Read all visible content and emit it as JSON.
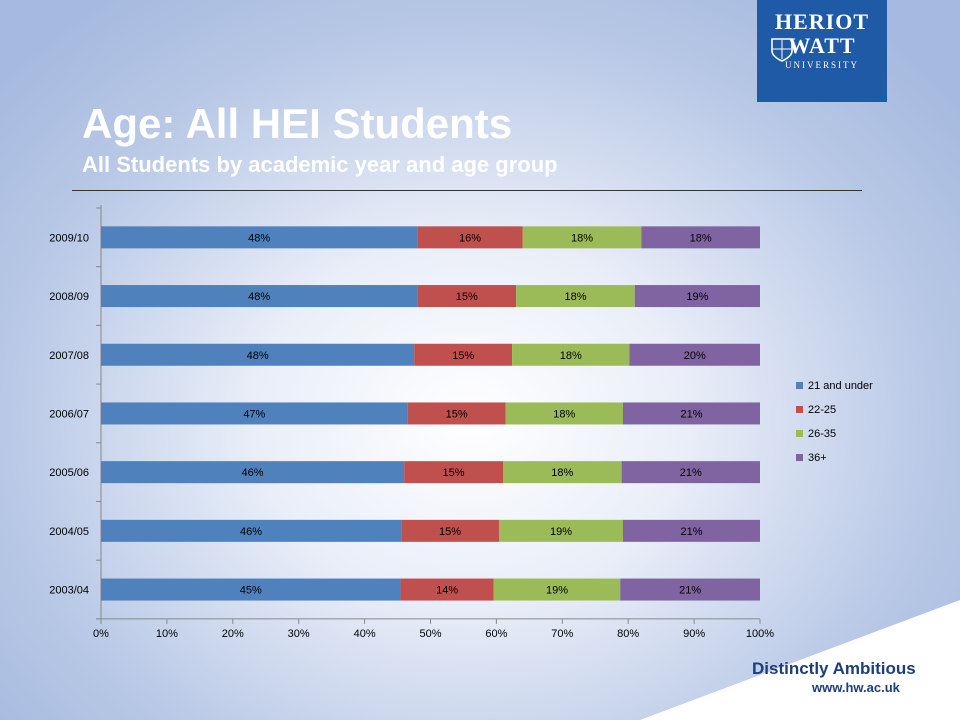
{
  "slide": {
    "title": "Age: All HEI Students",
    "subtitle": "All Students by academic year and age group",
    "logo_line1": "HERIOT",
    "logo_line2": "WATT",
    "logo_line3": "UNIVERSITY",
    "tagline": "Distinctly Ambitious",
    "url": "www.hw.ac.uk",
    "brand_color": "#1f5aa6"
  },
  "chart_data": {
    "type": "bar",
    "orientation": "horizontal",
    "stacked": "100%",
    "categories": [
      "2009/10",
      "2008/09",
      "2007/08",
      "2006/07",
      "2005/06",
      "2004/05",
      "2003/04"
    ],
    "series": [
      {
        "name": "21 and under",
        "color": "#4f81bd",
        "values": [
          48,
          48,
          48,
          47,
          46,
          46,
          45
        ]
      },
      {
        "name": "22-25",
        "color": "#c0504d",
        "values": [
          16,
          15,
          15,
          15,
          15,
          15,
          14
        ]
      },
      {
        "name": "26-35",
        "color": "#9bbb59",
        "values": [
          18,
          18,
          18,
          18,
          18,
          19,
          19
        ]
      },
      {
        "name": "36+",
        "color": "#8064a2",
        "values": [
          18,
          19,
          20,
          21,
          21,
          21,
          21
        ]
      }
    ],
    "x_ticks": [
      "0%",
      "10%",
      "20%",
      "30%",
      "40%",
      "50%",
      "60%",
      "70%",
      "80%",
      "90%",
      "100%"
    ],
    "xlim": [
      0,
      100
    ],
    "legend_position": "right",
    "grid": false
  }
}
